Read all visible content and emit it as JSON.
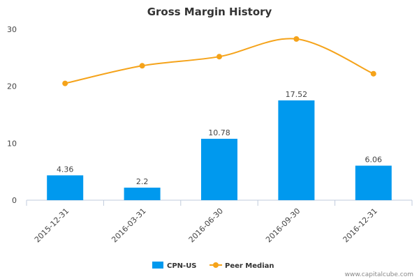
{
  "chart_data": {
    "type": "bar",
    "title": "Gross Margin History",
    "categories": [
      "2015-12-31",
      "2016-03-31",
      "2016-06-30",
      "2016-09-30",
      "2016-12-31"
    ],
    "series": [
      {
        "name": "CPN-US",
        "type": "bar",
        "values": [
          4.36,
          2.2,
          10.78,
          17.52,
          6.06
        ],
        "labels": [
          "4.36",
          "2.2",
          "10.78",
          "17.52",
          "6.06"
        ],
        "color": "#0099ee"
      },
      {
        "name": "Peer Median",
        "type": "line",
        "values": [
          20.5,
          23.6,
          25.2,
          28.3,
          22.2
        ],
        "color": "#f5a31a"
      }
    ],
    "yticks": [
      "0",
      "10",
      "20",
      "30"
    ],
    "ylim": [
      0,
      30
    ],
    "grid": false,
    "legend": "bottom-center",
    "watermark": "www.capitalcube.com"
  }
}
